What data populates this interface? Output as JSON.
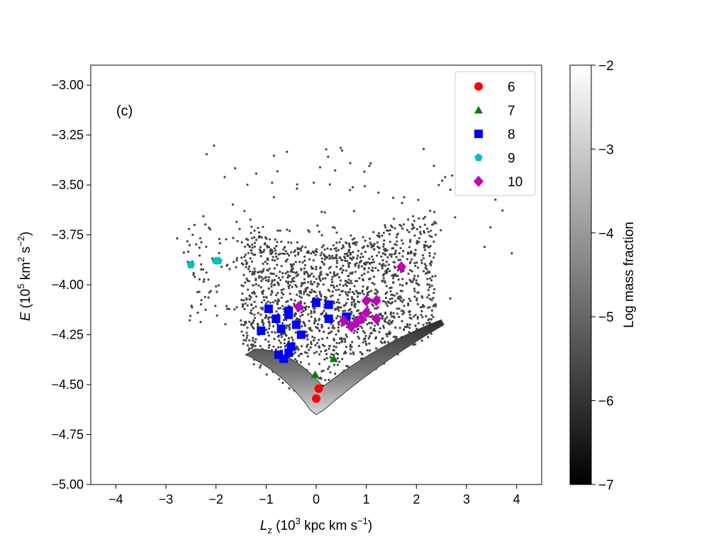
{
  "chart_data": {
    "type": "scatter",
    "panel_label": "(c)",
    "xlabel_symbol": "L",
    "xlabel_sub": "z",
    "xlabel_rest": "(10",
    "xlabel_exp": "3",
    "xlabel_units": " kpc km s",
    "xlabel_units_exp": "−1",
    "xlabel_close": ")",
    "ylabel_symbol": "E",
    "ylabel_rest": "(10",
    "ylabel_exp": "5",
    "ylabel_units": " km",
    "ylabel_units_exp1": "2",
    "ylabel_units_mid": " s",
    "ylabel_units_exp2": "−2",
    "ylabel_close": ")",
    "xlim": [
      -4.5,
      4.5
    ],
    "ylim": [
      -5.0,
      -2.9
    ],
    "xticks": [
      -4,
      -3,
      -2,
      -1,
      0,
      1,
      2,
      3,
      4
    ],
    "xtick_labels": [
      "−4",
      "−3",
      "−2",
      "−1",
      "0",
      "1",
      "2",
      "3",
      "4"
    ],
    "yticks": [
      -5.0,
      -4.75,
      -4.5,
      -4.25,
      -4.0,
      -3.75,
      -3.5,
      -3.25,
      -3.0
    ],
    "ytick_labels": [
      "−5.00",
      "−4.75",
      "−4.50",
      "−4.25",
      "−4.00",
      "−3.75",
      "−3.50",
      "−3.25",
      "−3.00"
    ],
    "colorbar": {
      "label": "Log mass fraction",
      "range": [
        -7,
        -2
      ],
      "ticks": [
        -7,
        -6,
        -5,
        -4,
        -3,
        -2
      ],
      "tick_labels": [
        "−7",
        "−6",
        "−5",
        "−4",
        "−3",
        "−2"
      ]
    },
    "density_region": {
      "description": "log mass fraction density map",
      "vertex_x": 0.0,
      "vertex_y": -4.65,
      "left_top_x": -1.4,
      "left_top_y": -4.35,
      "right_top_x": 2.55,
      "right_top_y": -4.2
    },
    "legend_position": "top-right",
    "series": [
      {
        "name": "6",
        "marker": "circle",
        "color": "#ff0000",
        "points": [
          [
            0.05,
            -4.52
          ],
          [
            0.0,
            -4.57
          ]
        ]
      },
      {
        "name": "7",
        "marker": "triangle",
        "color": "#008000",
        "points": [
          [
            -0.02,
            -4.45
          ],
          [
            0.35,
            -4.37
          ]
        ]
      },
      {
        "name": "8",
        "marker": "square",
        "color": "#0000ff",
        "points": [
          [
            -1.1,
            -4.23
          ],
          [
            -0.95,
            -4.12
          ],
          [
            -0.8,
            -4.17
          ],
          [
            -0.7,
            -4.22
          ],
          [
            -0.55,
            -4.13
          ],
          [
            -0.55,
            -4.15
          ],
          [
            -0.4,
            -4.2
          ],
          [
            -0.3,
            -4.25
          ],
          [
            -0.75,
            -4.35
          ],
          [
            -0.65,
            -4.37
          ],
          [
            -0.55,
            -4.34
          ],
          [
            -0.5,
            -4.31
          ],
          [
            0.0,
            -4.09
          ],
          [
            0.25,
            -4.1
          ],
          [
            0.25,
            -4.17
          ],
          [
            0.6,
            -4.16
          ]
        ]
      },
      {
        "name": "9",
        "marker": "pentagon",
        "color": "#00bfbf",
        "points": [
          [
            -2.5,
            -3.9
          ],
          [
            -2.0,
            -3.88
          ],
          [
            -1.95,
            -3.88
          ]
        ]
      },
      {
        "name": "10",
        "marker": "diamond",
        "color": "#bf00bf",
        "points": [
          [
            -0.35,
            -4.11
          ],
          [
            0.55,
            -4.18
          ],
          [
            0.7,
            -4.21
          ],
          [
            0.8,
            -4.19
          ],
          [
            0.9,
            -4.17
          ],
          [
            1.0,
            -4.14
          ],
          [
            1.0,
            -4.08
          ],
          [
            1.2,
            -4.08
          ],
          [
            1.2,
            -4.17
          ],
          [
            1.7,
            -3.91
          ]
        ]
      }
    ]
  }
}
